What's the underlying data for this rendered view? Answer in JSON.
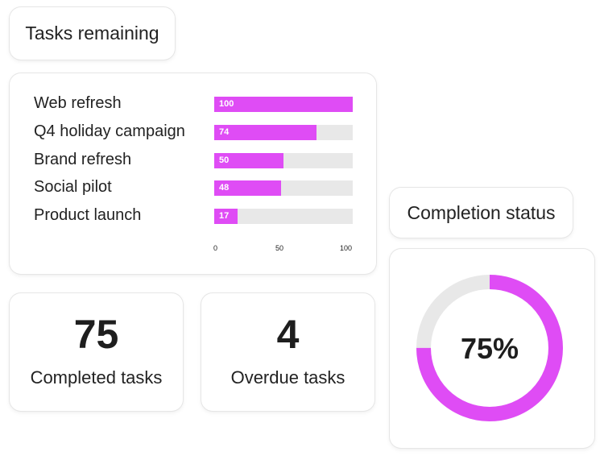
{
  "tasks_title": "Tasks remaining",
  "status_title": "Completion status",
  "colors": {
    "accent": "#df4cf5",
    "track": "#e8e8e8"
  },
  "chart_data": [
    {
      "type": "bar",
      "orientation": "horizontal",
      "categories": [
        "Web refresh",
        "Q4 holiday campaign",
        "Brand refresh",
        "Social pilot",
        "Product launch"
      ],
      "values": [
        100,
        74,
        50,
        48,
        17
      ],
      "xlim": [
        0,
        100
      ],
      "xticks": [
        "0",
        "50",
        "100"
      ],
      "grid": false
    },
    {
      "type": "pie",
      "variant": "donut",
      "values": [
        75,
        25
      ],
      "center_label": "75%"
    }
  ],
  "stats": [
    {
      "value": "75",
      "label": "Completed tasks"
    },
    {
      "value": "4",
      "label": "Overdue tasks"
    }
  ]
}
